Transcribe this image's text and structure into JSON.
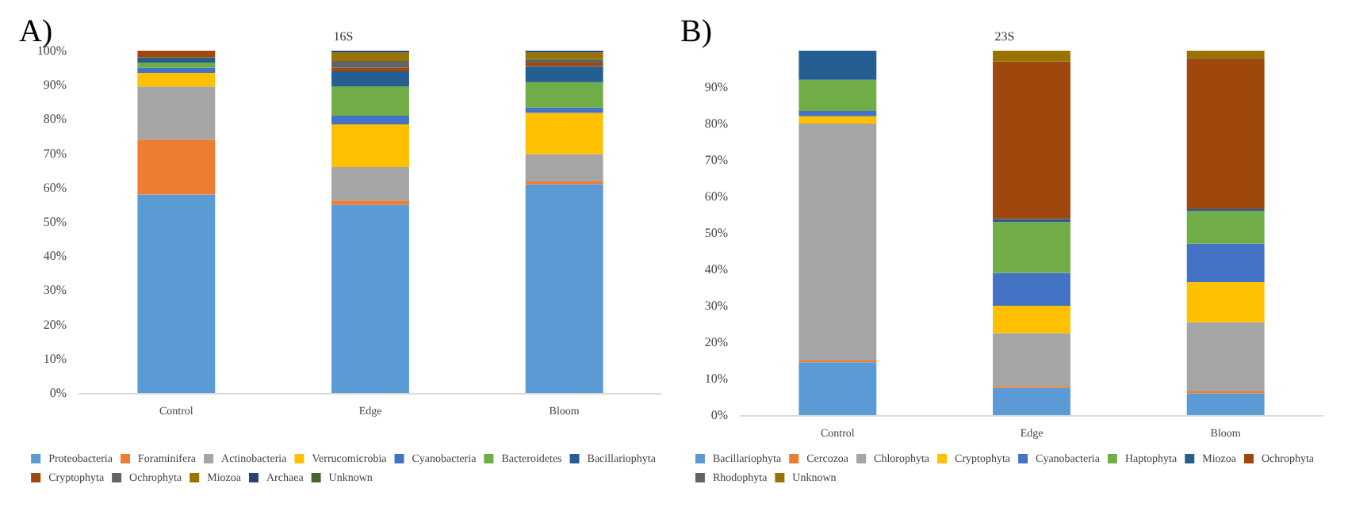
{
  "chart_data": [
    {
      "type": "bar",
      "title": "16S",
      "stacked": true,
      "annotations": [
        "A)"
      ],
      "categories": [
        "Control",
        "Edge",
        "Bloom"
      ],
      "ylim": [
        0,
        100
      ],
      "yticks": [
        {
          "value": 0,
          "label": "0%"
        },
        {
          "value": 10,
          "label": "10%"
        },
        {
          "value": 20,
          "label": "20%"
        },
        {
          "value": 30,
          "label": "30%"
        },
        {
          "value": 40,
          "label": "40%"
        },
        {
          "value": 50,
          "label": "50%"
        },
        {
          "value": 60,
          "label": "60%"
        },
        {
          "value": 70,
          "label": "70%"
        },
        {
          "value": 80,
          "label": "80%"
        },
        {
          "value": 90,
          "label": "90%"
        },
        {
          "value": 100,
          "label": "100%"
        }
      ],
      "grid": false,
      "legend": "bottom",
      "series": [
        {
          "name": "Proteobacteria",
          "color": "#5b9bd5",
          "values": [
            58,
            55,
            61
          ]
        },
        {
          "name": "Foraminifera",
          "color": "#ed7d31",
          "values": [
            16,
            1.2,
            0.8
          ]
        },
        {
          "name": "Actinobacteria",
          "color": "#a5a5a5",
          "values": [
            15.5,
            9.8,
            8
          ]
        },
        {
          "name": "Verrucomicrobia",
          "color": "#ffc000",
          "values": [
            4,
            12.5,
            12
          ]
        },
        {
          "name": "Cyanobacteria",
          "color": "#4472c4",
          "values": [
            1.5,
            2.5,
            1.6
          ]
        },
        {
          "name": "Bacteroidetes",
          "color": "#70ad47",
          "values": [
            1.5,
            8.5,
            7.4
          ]
        },
        {
          "name": "Bacillariophyta",
          "color": "#255e91",
          "values": [
            1.5,
            4.5,
            4.7
          ]
        },
        {
          "name": "Cryptophyta",
          "color": "#9e480e",
          "values": [
            2,
            1,
            1
          ]
        },
        {
          "name": "Ochrophyta",
          "color": "#636363",
          "values": [
            0,
            2,
            1
          ]
        },
        {
          "name": "Miozoa",
          "color": "#997300",
          "values": [
            0,
            2.5,
            2
          ]
        },
        {
          "name": "Archaea",
          "color": "#264478",
          "values": [
            0,
            0.5,
            0.5
          ]
        },
        {
          "name": "Unknown",
          "color": "#43682b",
          "values": [
            0,
            0,
            0
          ]
        }
      ]
    },
    {
      "type": "bar",
      "title": "23S",
      "stacked": true,
      "annotations": [
        "B)"
      ],
      "categories": [
        "Control",
        "Edge",
        "Bloom"
      ],
      "ylim": [
        0,
        100
      ],
      "yticks": [
        {
          "value": 0,
          "label": "0%"
        },
        {
          "value": 10,
          "label": "10%"
        },
        {
          "value": 20,
          "label": "20%"
        },
        {
          "value": 30,
          "label": "30%"
        },
        {
          "value": 40,
          "label": "40%"
        },
        {
          "value": 50,
          "label": "50%"
        },
        {
          "value": 60,
          "label": "60%"
        },
        {
          "value": 70,
          "label": "70%"
        },
        {
          "value": 80,
          "label": "80%"
        },
        {
          "value": 90,
          "label": "90%"
        }
      ],
      "grid": false,
      "legend": "bottom",
      "series": [
        {
          "name": "Bacillariophyta",
          "color": "#5b9bd5",
          "values": [
            14.5,
            7.5,
            6
          ]
        },
        {
          "name": "Cercozoa",
          "color": "#ed7d31",
          "values": [
            0.5,
            0.5,
            0.5
          ]
        },
        {
          "name": "Chlorophyta",
          "color": "#a5a5a5",
          "values": [
            65,
            14.5,
            19
          ]
        },
        {
          "name": "Cryptophyta",
          "color": "#ffc000",
          "values": [
            2,
            7.5,
            11
          ]
        },
        {
          "name": "Cyanobacteria",
          "color": "#4472c4",
          "values": [
            1.5,
            9,
            10.5
          ]
        },
        {
          "name": "Haptophyta",
          "color": "#70ad47",
          "values": [
            8.5,
            14,
            9
          ]
        },
        {
          "name": "Miozoa",
          "color": "#255e91",
          "values": [
            8,
            0.8,
            0.5
          ]
        },
        {
          "name": "Ochrophyta",
          "color": "#9e480e",
          "values": [
            0,
            43.2,
            41.5
          ]
        },
        {
          "name": "Rhodophyta",
          "color": "#636363",
          "values": [
            0,
            0,
            0
          ]
        },
        {
          "name": "Unknown",
          "color": "#997300",
          "values": [
            0,
            3,
            2
          ]
        }
      ]
    }
  ]
}
